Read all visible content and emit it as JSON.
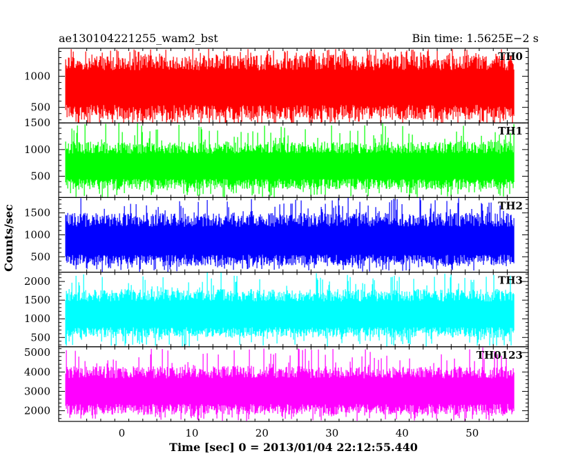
{
  "header": {
    "left_title": "ae130104221255_wam2_bst",
    "right_title": "Bin time: 1.5625E−2 s"
  },
  "chart_data": {
    "type": "line",
    "xlabel": "Time [sec] 0 = 2013/01/04 22:12:55.440",
    "ylabel": "Counts/sec",
    "xlim": [
      -9,
      58
    ],
    "x_ticks": [
      0,
      10,
      20,
      30,
      40,
      50
    ],
    "x_range_data": [
      -8,
      56
    ],
    "panels": [
      {
        "name": "TH0",
        "color": "#ff0000",
        "ylim": [
          250,
          1450
        ],
        "yticks": [
          500,
          1000
        ],
        "band_low": 300,
        "band_high": 1350,
        "mean": 780,
        "spike_low": 200,
        "spike_high": 1450
      },
      {
        "name": "TH1",
        "color": "#00ff00",
        "ylim": [
          100,
          1500
        ],
        "yticks": [
          500,
          1000,
          1500
        ],
        "band_low": 250,
        "band_high": 1150,
        "mean": 650,
        "spike_low": 100,
        "spike_high": 1500
      },
      {
        "name": "TH2",
        "color": "#0000ff",
        "ylim": [
          150,
          1850
        ],
        "yticks": [
          500,
          1000,
          1500
        ],
        "band_low": 300,
        "band_high": 1500,
        "mean": 800,
        "spike_low": 150,
        "spike_high": 1850
      },
      {
        "name": "TH3",
        "color": "#00ffff",
        "ylim": [
          250,
          2250
        ],
        "yticks": [
          500,
          1000,
          1500,
          2000
        ],
        "band_low": 500,
        "band_high": 1800,
        "mean": 1050,
        "spike_low": 250,
        "spike_high": 2250
      },
      {
        "name": "TH0123",
        "color": "#ff00ff",
        "ylim": [
          1450,
          5300
        ],
        "yticks": [
          2000,
          3000,
          4000,
          5000
        ],
        "band_low": 1800,
        "band_high": 4300,
        "mean": 2900,
        "spike_low": 1450,
        "spike_high": 5300
      }
    ]
  }
}
